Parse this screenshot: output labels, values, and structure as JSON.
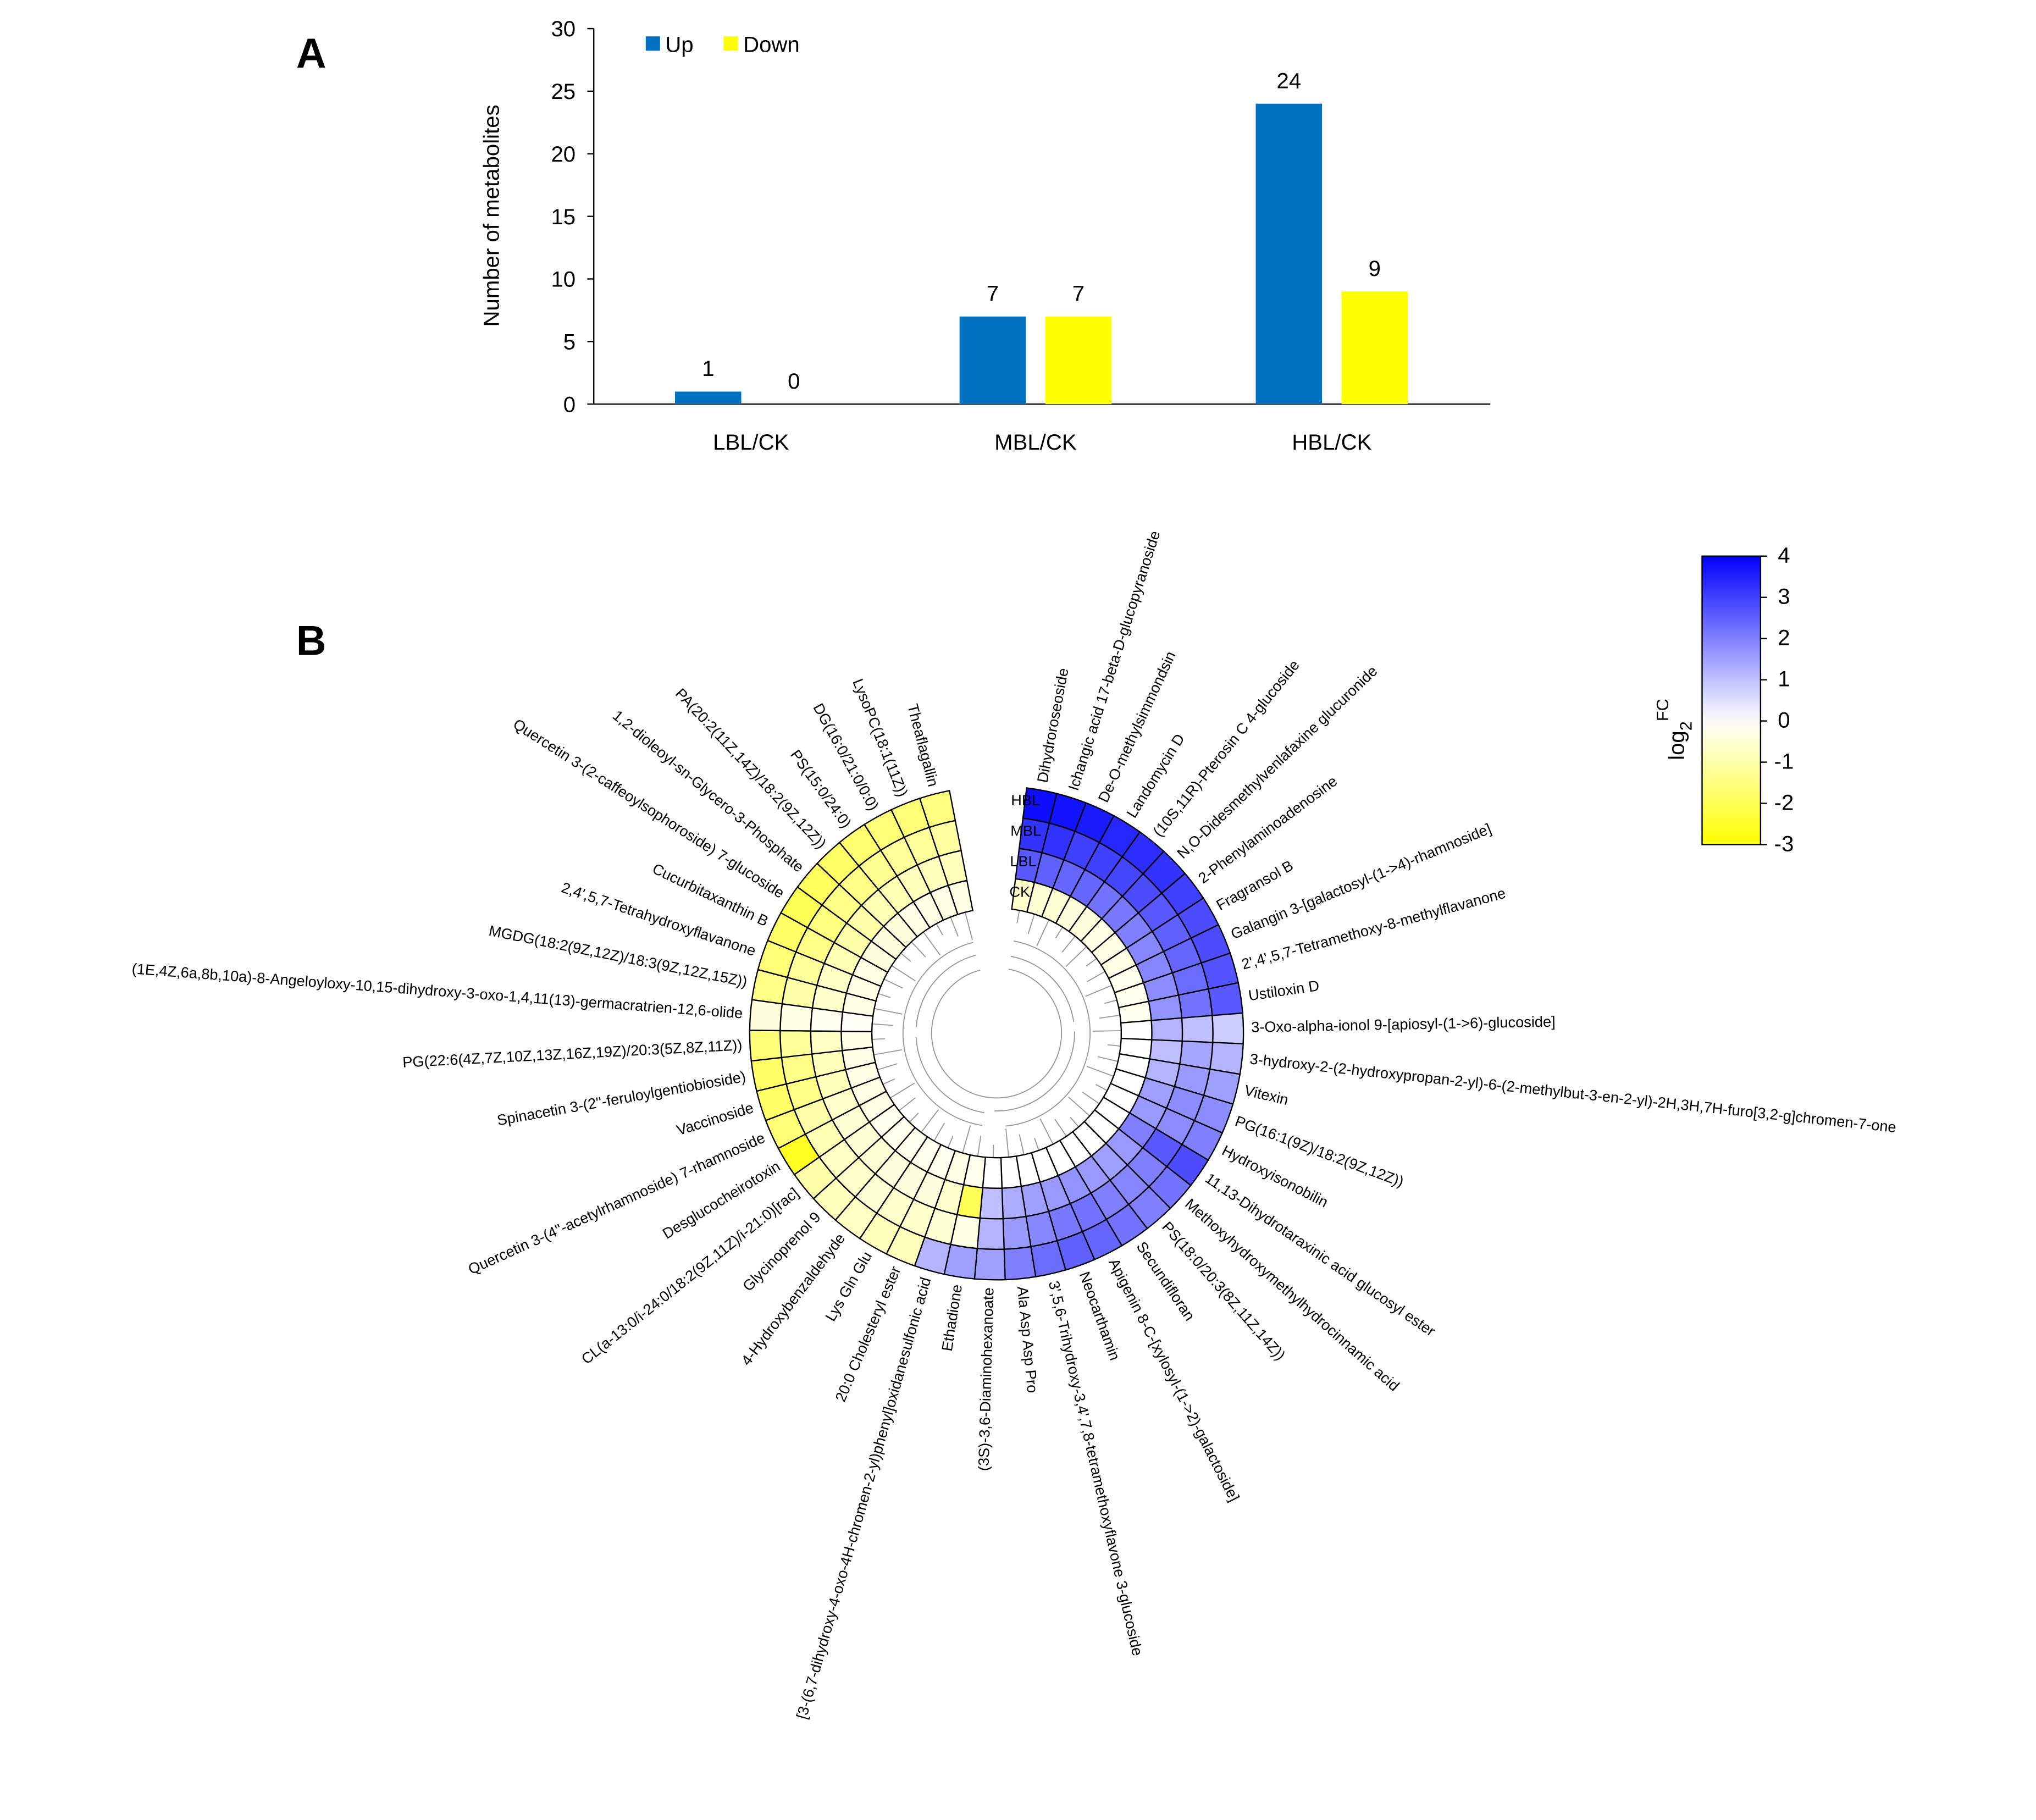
{
  "chart_data": [
    {
      "type": "bar",
      "panel": "A",
      "ylabel": "Number of metabolites",
      "categories": [
        "LBL/CK",
        "MBL/CK",
        "HBL/CK"
      ],
      "series": [
        {
          "name": "Up",
          "color": "#0070c0",
          "values": [
            1,
            7,
            24
          ]
        },
        {
          "name": "Down",
          "color": "#ffff00",
          "values": [
            0,
            7,
            9
          ]
        }
      ],
      "ylim": [
        0,
        30
      ],
      "yticks": [
        0,
        5,
        10,
        15,
        20,
        25,
        30
      ],
      "legend": "upper left",
      "grid": false
    },
    {
      "type": "heatmap",
      "panel": "B",
      "categories": [
        "Dihydroroseoside",
        "Ichangic acid 17-beta-D-glucopyranoside",
        "De-O-methylsimmondsin",
        "Landomycin D",
        "(10S,11R)-Pterosin C 4-glucoside",
        "N,O-Didesmethylvenlafaxine glucuronide",
        "2-Phenylaminoadenosine",
        "Fragransol B",
        "Galangin 3-[galactosyl-(1->4)-rhamnoside]",
        "2',4',5,7-Tetramethoxy-8-methylflavanone",
        "Ustiloxin D",
        "3-Oxo-alpha-ionol 9-[apiosyl-(1->6)-glucoside]",
        "3-hydroxy-2-(2-hydroxypropan-2-yl)-6-(2-methylbut-3-en-2-yl)-2H,3H,7H-furo[3,2-g]chromen-7-one",
        "Vitexin",
        "PG(16:1(9Z)/18:2(9Z,12Z))",
        "Hydroxyisonobilin",
        "11,13-Dihydrotaraxinic acid glucosyl ester",
        "Methoxyhydroxymethylhydrocinnamic acid",
        "PS(18:0/20:3(8Z,11Z,14Z))",
        "Secundifloran",
        "Apigenin 8-C-[xylosyl-(1->2)-galactoside]",
        "Neocarthamin",
        "3',5,6-Trihydroxy-3,4',7,8-tetramethoxyflavone 3-glucoside",
        "Ala Asp Asp Pro",
        "(3S)-3,6-Diaminohexanoate",
        "Ethadione",
        "[3-(6,7-dihydroxy-4-oxo-4H-chromen-2-yl)phenyl]oxidanesulfonic acid",
        "20:0 Cholesteryl ester",
        "Lys Gln Glu",
        "4-Hydroxybenzaldehyde",
        "Glycinoprenol 9",
        "CL(a-13:0/i-24:0/18:2(9Z,11Z)/i-21:0)[rac]",
        "Desglucocheirotoxin",
        "Quercetin 3-(4''-acetylrhamnoside) 7-rhamnoside",
        "Vaccinoside",
        "Spinacetin 3-(2''-feruloylgentiobioside)",
        "PG(22:6(4Z,7Z,10Z,13Z,16Z,19Z)/20:3(5Z,8Z,11Z))",
        "(1E,4Z,6a,8b,10a)-8-Angeloyloxy-10,15-dihydroxy-3-oxo-1,4,11(13)-germacratrien-12,6-olide",
        "MGDG(18:2(9Z,12Z)/18:3(9Z,12Z,15Z))",
        "2,4',5,7-Tetrahydroxyflavanone",
        "Cucurbitaxanthin B",
        "Quercetin 3-(2-caffeoylsophoroside) 7-glucoside",
        "1,2-dioleoyl-sn-Glycero-3-Phosphate",
        "PA(20:2(11Z,14Z)/18:2(9Z,12Z))",
        "PS(15:0/24:0)",
        "DG(16:0/21:0/0:0)",
        "LysoPC(18:1(11Z))",
        "Theaflagallin"
      ],
      "series": [
        {
          "name": "HBL",
          "values": [
            3.8,
            3.7,
            3.6,
            3.4,
            3.3,
            3.2,
            3.0,
            2.8,
            2.8,
            2.7,
            2.6,
            0.8,
            1.2,
            1.5,
            1.8,
            2.0,
            2.8,
            2.2,
            2.0,
            2.2,
            2.4,
            2.5,
            2.3,
            2.0,
            1.5,
            1.5,
            1.2,
            -0.8,
            -0.8,
            -0.7,
            -0.8,
            -1.0,
            -2.6,
            -1.6,
            -1.8,
            -1.8,
            -1.6,
            -0.4,
            -1.4,
            -1.6,
            -1.8,
            -2.0,
            -1.9,
            -1.8,
            -1.7,
            -1.6,
            -1.6,
            -1.5
          ]
        },
        {
          "name": "MBL",
          "values": [
            3.2,
            3.2,
            3.0,
            3.0,
            2.9,
            2.8,
            2.6,
            2.5,
            2.4,
            2.3,
            2.2,
            1.0,
            1.4,
            1.6,
            1.8,
            1.8,
            2.6,
            2.0,
            1.9,
            2.0,
            2.2,
            2.1,
            1.9,
            1.6,
            1.2,
            -0.3,
            -0.5,
            -0.6,
            -0.6,
            -0.5,
            -0.6,
            -0.7,
            -0.9,
            -1.0,
            -1.4,
            -1.4,
            -1.2,
            -0.3,
            -1.0,
            -1.2,
            -1.4,
            -1.5,
            -1.4,
            -1.4,
            -1.3,
            -1.2,
            -1.2,
            -1.1
          ]
        },
        {
          "name": "LBL",
          "values": [
            2.6,
            2.5,
            2.4,
            2.4,
            2.2,
            2.1,
            2.0,
            1.9,
            1.9,
            1.8,
            1.7,
            1.2,
            1.0,
            1.2,
            1.5,
            1.6,
            2.0,
            1.6,
            1.5,
            1.6,
            1.7,
            1.6,
            1.5,
            1.3,
            1.0,
            -2.0,
            -0.6,
            -0.4,
            -0.4,
            -0.4,
            -0.5,
            -0.5,
            -0.5,
            -0.6,
            -0.8,
            -0.8,
            -0.7,
            -0.2,
            -0.6,
            -0.7,
            -0.9,
            -1.0,
            -1.0,
            -0.9,
            -0.9,
            -0.8,
            -0.8,
            -0.8
          ]
        },
        {
          "name": "CK",
          "values": [
            -0.6,
            -0.5,
            -0.5,
            -0.4,
            -0.4,
            -0.3,
            -0.3,
            -0.3,
            -0.2,
            -0.2,
            -0.2,
            0,
            0,
            0,
            0,
            0,
            0,
            0,
            0,
            0,
            0,
            0,
            0,
            0,
            0,
            -0.2,
            -0.3,
            -0.2,
            -0.2,
            -0.2,
            -0.2,
            -0.2,
            -0.3,
            -0.3,
            -0.3,
            -0.3,
            -0.3,
            -0.1,
            -0.3,
            -0.3,
            -0.3,
            -0.4,
            -0.4,
            -0.4,
            -0.3,
            -0.3,
            -0.3,
            -0.3
          ]
        }
      ],
      "colorbar_title": {
        "base": "log",
        "sub": "2",
        "sup": "FC"
      },
      "clim": [
        -3,
        4
      ],
      "cticks": [
        4,
        3,
        2,
        1,
        0,
        -1,
        -2,
        -3
      ],
      "colormap": [
        {
          "value": -3,
          "color": "#ffff00"
        },
        {
          "value": 0,
          "color": "#ffffff"
        },
        {
          "value": 4,
          "color": "#0000ff"
        }
      ]
    }
  ]
}
